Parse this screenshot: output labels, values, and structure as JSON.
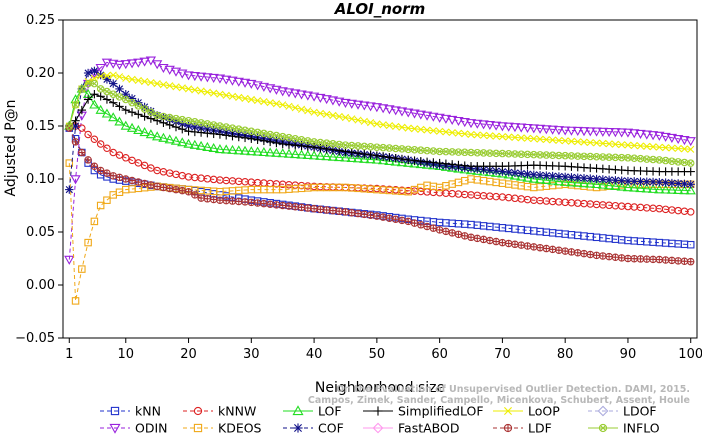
{
  "chart_data": {
    "type": "line",
    "title": "ALOI_norm",
    "xlabel": "Neighborhood size",
    "ylabel": "Adjusted P@n",
    "xlim": [
      0,
      101
    ],
    "ylim": [
      -0.05,
      0.25
    ],
    "xticks": [
      1,
      10,
      20,
      30,
      40,
      50,
      60,
      70,
      80,
      90,
      100
    ],
    "yticks": [
      -0.05,
      0.0,
      0.05,
      0.1,
      0.15,
      0.2,
      0.25
    ],
    "ytick_labels": [
      "−0.05",
      "0.00",
      "0.05",
      "0.10",
      "0.15",
      "0.20",
      "0.25"
    ],
    "grid": false,
    "legend_position": "bottom",
    "watermark": [
      "Campos, Zimek, Sander, Campello, Micenkova, Schubert, Assent, Houle",
      "On the Evaluation of Unsupervised Outlier Detection. DAMI, 2015."
    ],
    "series": [
      {
        "name": "kNN",
        "color": "#2233cc",
        "marker": "square",
        "dashed": true,
        "points": [
          [
            1,
            0.148
          ],
          [
            2,
            0.138
          ],
          [
            3,
            0.125
          ],
          [
            4,
            0.115
          ],
          [
            5,
            0.108
          ],
          [
            6,
            0.104
          ],
          [
            8,
            0.1
          ],
          [
            10,
            0.098
          ],
          [
            15,
            0.093
          ],
          [
            20,
            0.09
          ],
          [
            25,
            0.085
          ],
          [
            30,
            0.08
          ],
          [
            35,
            0.076
          ],
          [
            40,
            0.072
          ],
          [
            45,
            0.069
          ],
          [
            50,
            0.066
          ],
          [
            55,
            0.062
          ],
          [
            60,
            0.059
          ],
          [
            65,
            0.057
          ],
          [
            70,
            0.054
          ],
          [
            75,
            0.051
          ],
          [
            80,
            0.048
          ],
          [
            85,
            0.045
          ],
          [
            90,
            0.042
          ],
          [
            95,
            0.04
          ],
          [
            100,
            0.038
          ]
        ]
      },
      {
        "name": "ODIN",
        "color": "#9922dd",
        "marker": "triangle-down",
        "dashed": true,
        "points": [
          [
            1,
            0.024
          ],
          [
            2,
            0.1
          ],
          [
            3,
            0.16
          ],
          [
            4,
            0.19
          ],
          [
            5,
            0.2
          ],
          [
            6,
            0.205
          ],
          [
            7,
            0.21
          ],
          [
            9,
            0.208
          ],
          [
            12,
            0.21
          ],
          [
            14,
            0.212
          ],
          [
            16,
            0.205
          ],
          [
            20,
            0.198
          ],
          [
            25,
            0.195
          ],
          [
            30,
            0.19
          ],
          [
            35,
            0.183
          ],
          [
            40,
            0.178
          ],
          [
            45,
            0.172
          ],
          [
            50,
            0.168
          ],
          [
            55,
            0.163
          ],
          [
            60,
            0.158
          ],
          [
            65,
            0.153
          ],
          [
            70,
            0.15
          ],
          [
            75,
            0.148
          ],
          [
            80,
            0.146
          ],
          [
            85,
            0.145
          ],
          [
            90,
            0.144
          ],
          [
            95,
            0.141
          ],
          [
            100,
            0.136
          ]
        ]
      },
      {
        "name": "kNNW",
        "color": "#dd2222",
        "marker": "circle",
        "dashed": true,
        "points": [
          [
            1,
            0.15
          ],
          [
            2,
            0.15
          ],
          [
            3,
            0.148
          ],
          [
            4,
            0.142
          ],
          [
            6,
            0.133
          ],
          [
            8,
            0.125
          ],
          [
            10,
            0.12
          ],
          [
            15,
            0.108
          ],
          [
            20,
            0.102
          ],
          [
            25,
            0.099
          ],
          [
            30,
            0.097
          ],
          [
            35,
            0.095
          ],
          [
            40,
            0.093
          ],
          [
            45,
            0.092
          ],
          [
            50,
            0.091
          ],
          [
            55,
            0.089
          ],
          [
            60,
            0.087
          ],
          [
            65,
            0.085
          ],
          [
            70,
            0.083
          ],
          [
            75,
            0.08
          ],
          [
            80,
            0.078
          ],
          [
            85,
            0.076
          ],
          [
            90,
            0.074
          ],
          [
            95,
            0.072
          ],
          [
            100,
            0.069
          ]
        ]
      },
      {
        "name": "KDEOS",
        "color": "#f0a818",
        "marker": "square",
        "dashed": true,
        "points": [
          [
            1,
            0.115
          ],
          [
            2,
            -0.015
          ],
          [
            3,
            0.015
          ],
          [
            4,
            0.04
          ],
          [
            5,
            0.06
          ],
          [
            6,
            0.075
          ],
          [
            8,
            0.085
          ],
          [
            10,
            0.09
          ],
          [
            15,
            0.093
          ],
          [
            20,
            0.09
          ],
          [
            25,
            0.088
          ],
          [
            30,
            0.09
          ],
          [
            35,
            0.09
          ],
          [
            40,
            0.092
          ],
          [
            45,
            0.092
          ],
          [
            50,
            0.09
          ],
          [
            55,
            0.088
          ],
          [
            58,
            0.094
          ],
          [
            60,
            0.092
          ],
          [
            65,
            0.1
          ],
          [
            70,
            0.096
          ],
          [
            75,
            0.092
          ],
          [
            80,
            0.095
          ],
          [
            85,
            0.092
          ],
          [
            90,
            0.095
          ],
          [
            95,
            0.095
          ],
          [
            100,
            0.095
          ]
        ]
      },
      {
        "name": "LOF",
        "color": "#22dd22",
        "marker": "triangle",
        "dashed": false,
        "points": [
          [
            1,
            0.15
          ],
          [
            2,
            0.175
          ],
          [
            3,
            0.185
          ],
          [
            4,
            0.18
          ],
          [
            5,
            0.17
          ],
          [
            6,
            0.165
          ],
          [
            8,
            0.158
          ],
          [
            10,
            0.15
          ],
          [
            15,
            0.14
          ],
          [
            20,
            0.133
          ],
          [
            25,
            0.128
          ],
          [
            30,
            0.126
          ],
          [
            35,
            0.124
          ],
          [
            40,
            0.122
          ],
          [
            45,
            0.12
          ],
          [
            50,
            0.118
          ],
          [
            55,
            0.115
          ],
          [
            60,
            0.112
          ],
          [
            65,
            0.108
          ],
          [
            70,
            0.105
          ],
          [
            75,
            0.1
          ],
          [
            80,
            0.097
          ],
          [
            85,
            0.095
          ],
          [
            90,
            0.092
          ],
          [
            95,
            0.09
          ],
          [
            100,
            0.089
          ]
        ]
      },
      {
        "name": "COF",
        "color": "#111188",
        "marker": "asterisk",
        "dashed": true,
        "points": [
          [
            1,
            0.09
          ],
          [
            2,
            0.15
          ],
          [
            3,
            0.185
          ],
          [
            4,
            0.2
          ],
          [
            5,
            0.202
          ],
          [
            6,
            0.198
          ],
          [
            8,
            0.19
          ],
          [
            10,
            0.18
          ],
          [
            12,
            0.172
          ],
          [
            15,
            0.16
          ],
          [
            20,
            0.15
          ],
          [
            25,
            0.145
          ],
          [
            30,
            0.14
          ],
          [
            35,
            0.135
          ],
          [
            40,
            0.13
          ],
          [
            45,
            0.125
          ],
          [
            50,
            0.122
          ],
          [
            55,
            0.118
          ],
          [
            60,
            0.113
          ],
          [
            65,
            0.11
          ],
          [
            70,
            0.107
          ],
          [
            75,
            0.104
          ],
          [
            80,
            0.102
          ],
          [
            85,
            0.1
          ],
          [
            90,
            0.098
          ],
          [
            95,
            0.097
          ],
          [
            100,
            0.095
          ]
        ]
      },
      {
        "name": "SimplifiedLOF",
        "color": "#000000",
        "marker": "plus",
        "dashed": false,
        "points": [
          [
            1,
            0.15
          ],
          [
            2,
            0.155
          ],
          [
            3,
            0.165
          ],
          [
            4,
            0.175
          ],
          [
            5,
            0.18
          ],
          [
            6,
            0.178
          ],
          [
            8,
            0.172
          ],
          [
            10,
            0.165
          ],
          [
            15,
            0.155
          ],
          [
            20,
            0.145
          ],
          [
            25,
            0.142
          ],
          [
            30,
            0.138
          ],
          [
            35,
            0.133
          ],
          [
            40,
            0.13
          ],
          [
            45,
            0.126
          ],
          [
            50,
            0.122
          ],
          [
            55,
            0.118
          ],
          [
            60,
            0.115
          ],
          [
            65,
            0.112
          ],
          [
            70,
            0.112
          ],
          [
            75,
            0.113
          ],
          [
            80,
            0.112
          ],
          [
            85,
            0.11
          ],
          [
            90,
            0.108
          ],
          [
            95,
            0.107
          ],
          [
            100,
            0.107
          ]
        ]
      },
      {
        "name": "FastABOD",
        "color": "#ff99ee",
        "marker": "diamond",
        "dashed": false,
        "points": []
      },
      {
        "name": "LoOP",
        "color": "#eeee00",
        "marker": "x",
        "dashed": false,
        "points": [
          [
            1,
            0.15
          ],
          [
            2,
            0.17
          ],
          [
            3,
            0.185
          ],
          [
            4,
            0.192
          ],
          [
            5,
            0.195
          ],
          [
            6,
            0.197
          ],
          [
            8,
            0.198
          ],
          [
            10,
            0.195
          ],
          [
            15,
            0.19
          ],
          [
            20,
            0.185
          ],
          [
            25,
            0.18
          ],
          [
            30,
            0.175
          ],
          [
            35,
            0.17
          ],
          [
            40,
            0.163
          ],
          [
            45,
            0.158
          ],
          [
            50,
            0.152
          ],
          [
            55,
            0.148
          ],
          [
            60,
            0.145
          ],
          [
            65,
            0.142
          ],
          [
            70,
            0.14
          ],
          [
            75,
            0.138
          ],
          [
            80,
            0.136
          ],
          [
            85,
            0.134
          ],
          [
            90,
            0.132
          ],
          [
            95,
            0.13
          ],
          [
            100,
            0.128
          ]
        ]
      },
      {
        "name": "LDF",
        "color": "#aa3333",
        "marker": "circle-plus",
        "dashed": true,
        "points": [
          [
            1,
            0.148
          ],
          [
            2,
            0.135
          ],
          [
            3,
            0.125
          ],
          [
            4,
            0.118
          ],
          [
            5,
            0.112
          ],
          [
            6,
            0.108
          ],
          [
            8,
            0.103
          ],
          [
            10,
            0.1
          ],
          [
            15,
            0.093
          ],
          [
            20,
            0.088
          ],
          [
            22,
            0.082
          ],
          [
            25,
            0.08
          ],
          [
            30,
            0.078
          ],
          [
            35,
            0.075
          ],
          [
            40,
            0.072
          ],
          [
            45,
            0.069
          ],
          [
            50,
            0.065
          ],
          [
            55,
            0.06
          ],
          [
            60,
            0.052
          ],
          [
            65,
            0.045
          ],
          [
            70,
            0.04
          ],
          [
            75,
            0.036
          ],
          [
            80,
            0.032
          ],
          [
            85,
            0.028
          ],
          [
            90,
            0.025
          ],
          [
            95,
            0.024
          ],
          [
            100,
            0.022
          ]
        ]
      },
      {
        "name": "LDOF",
        "color": "#aaaadd",
        "marker": "diamond",
        "dashed": true,
        "points": []
      },
      {
        "name": "INFLO",
        "color": "#99cc33",
        "marker": "circle-x",
        "dashed": false,
        "points": [
          [
            1,
            0.15
          ],
          [
            2,
            0.17
          ],
          [
            3,
            0.185
          ],
          [
            4,
            0.19
          ],
          [
            5,
            0.19
          ],
          [
            6,
            0.185
          ],
          [
            8,
            0.18
          ],
          [
            10,
            0.175
          ],
          [
            15,
            0.16
          ],
          [
            20,
            0.155
          ],
          [
            25,
            0.15
          ],
          [
            30,
            0.145
          ],
          [
            35,
            0.14
          ],
          [
            40,
            0.135
          ],
          [
            45,
            0.132
          ],
          [
            50,
            0.13
          ],
          [
            55,
            0.128
          ],
          [
            60,
            0.126
          ],
          [
            65,
            0.125
          ],
          [
            70,
            0.124
          ],
          [
            75,
            0.123
          ],
          [
            80,
            0.122
          ],
          [
            85,
            0.121
          ],
          [
            90,
            0.12
          ],
          [
            95,
            0.118
          ],
          [
            100,
            0.115
          ]
        ]
      }
    ]
  }
}
